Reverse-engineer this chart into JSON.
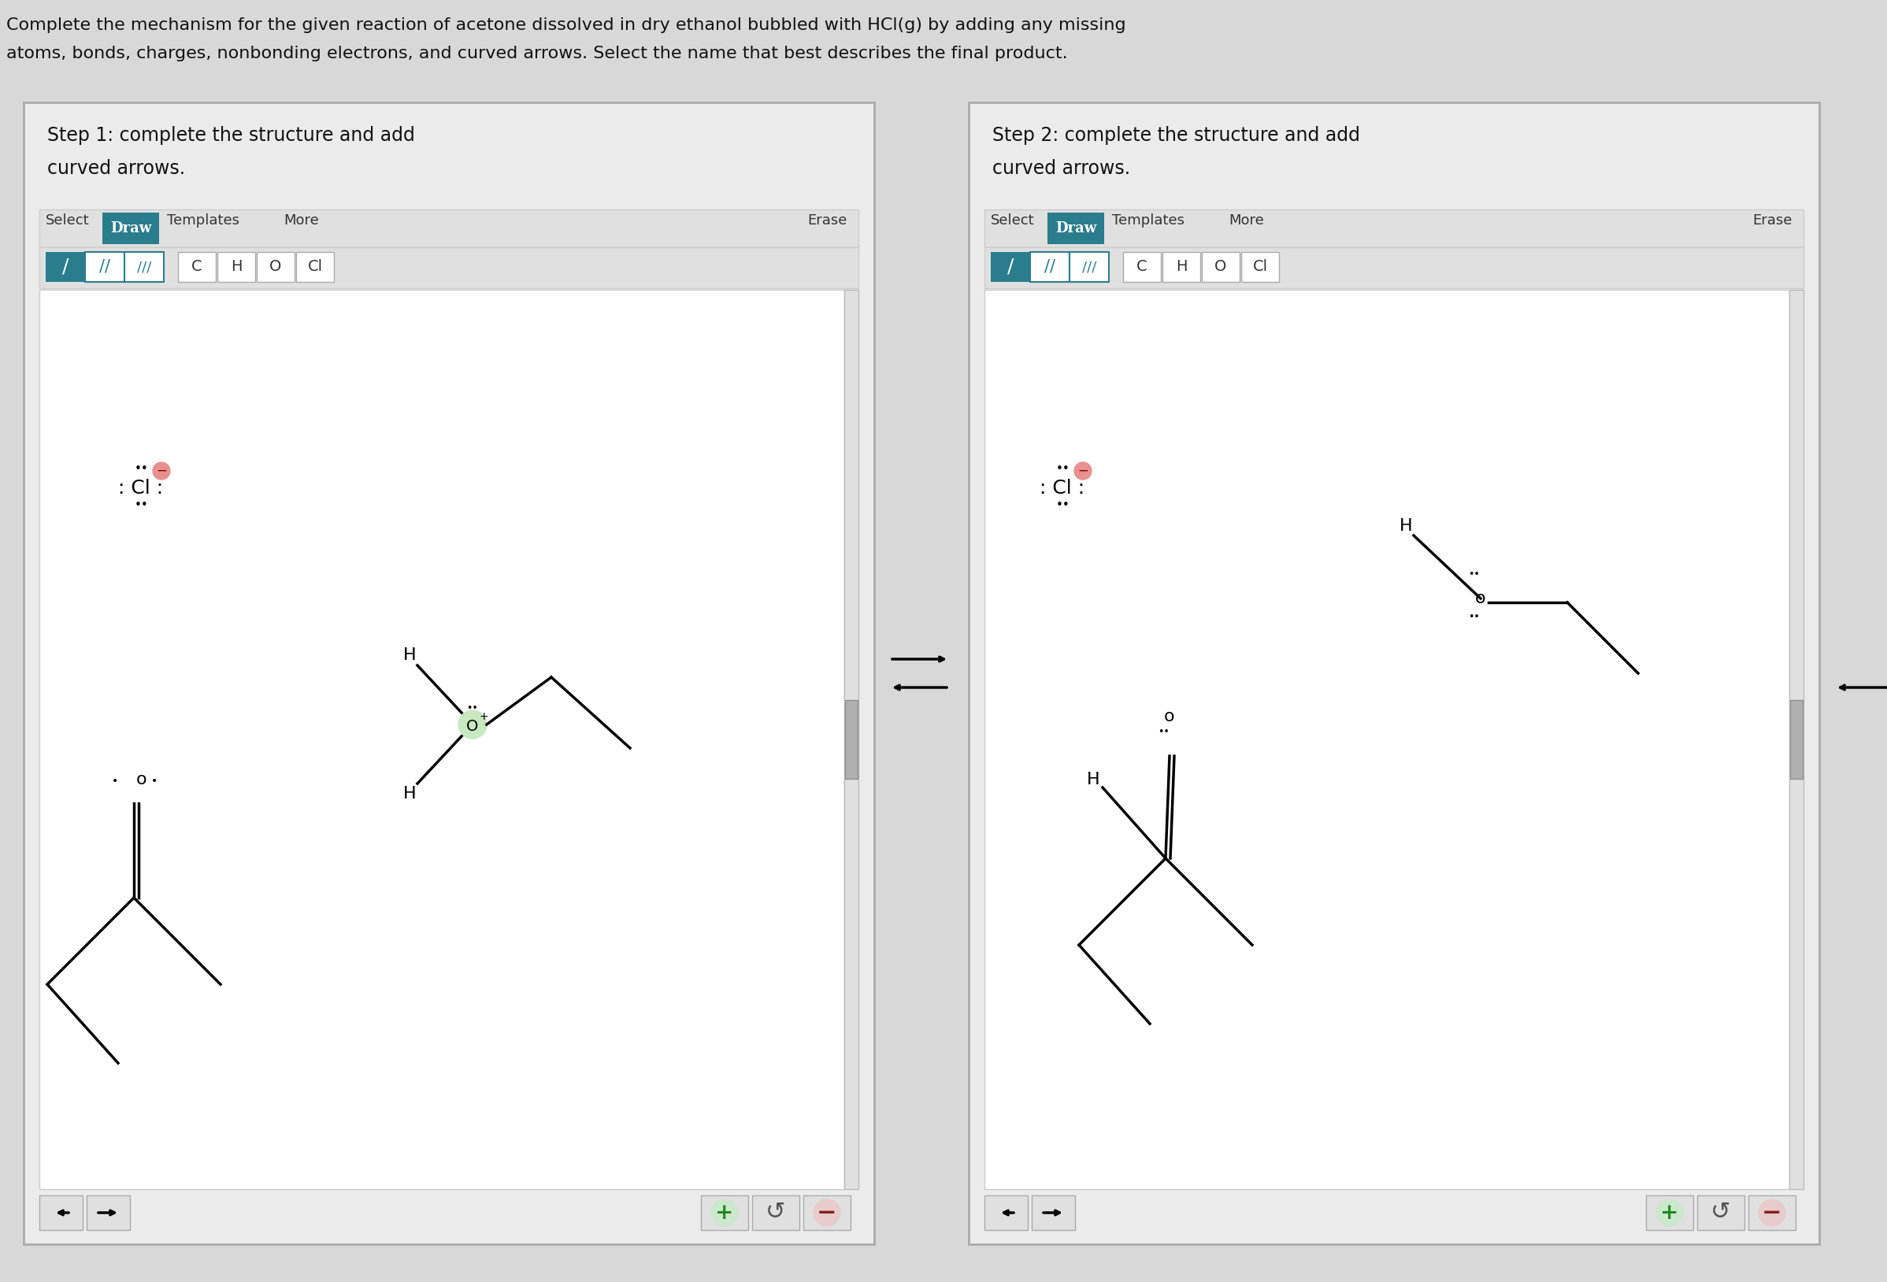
{
  "bg_color": "#d8d8d8",
  "panel_bg": "#ebebeb",
  "white_bg": "#ffffff",
  "header_line1": "Complete the mechanism for the given reaction of acetone dissolved in dry ethanol bubbled with HCl(g) by adding any missing",
  "header_line2": "atoms, bonds, charges, nonbonding electrons, and curved arrows. Select the name that best describes the final product.",
  "step1_line1": "Step 1: complete the structure and add",
  "step1_line2": "curved arrows.",
  "step2_line1": "Step 2: complete the structure and add",
  "step2_line2": "curved arrows.",
  "draw_color": "#2a7d8c",
  "toolbar_bg": "#e0e0e0",
  "btn_bg": "#ffffff",
  "btn_text": "#2a7d8c"
}
